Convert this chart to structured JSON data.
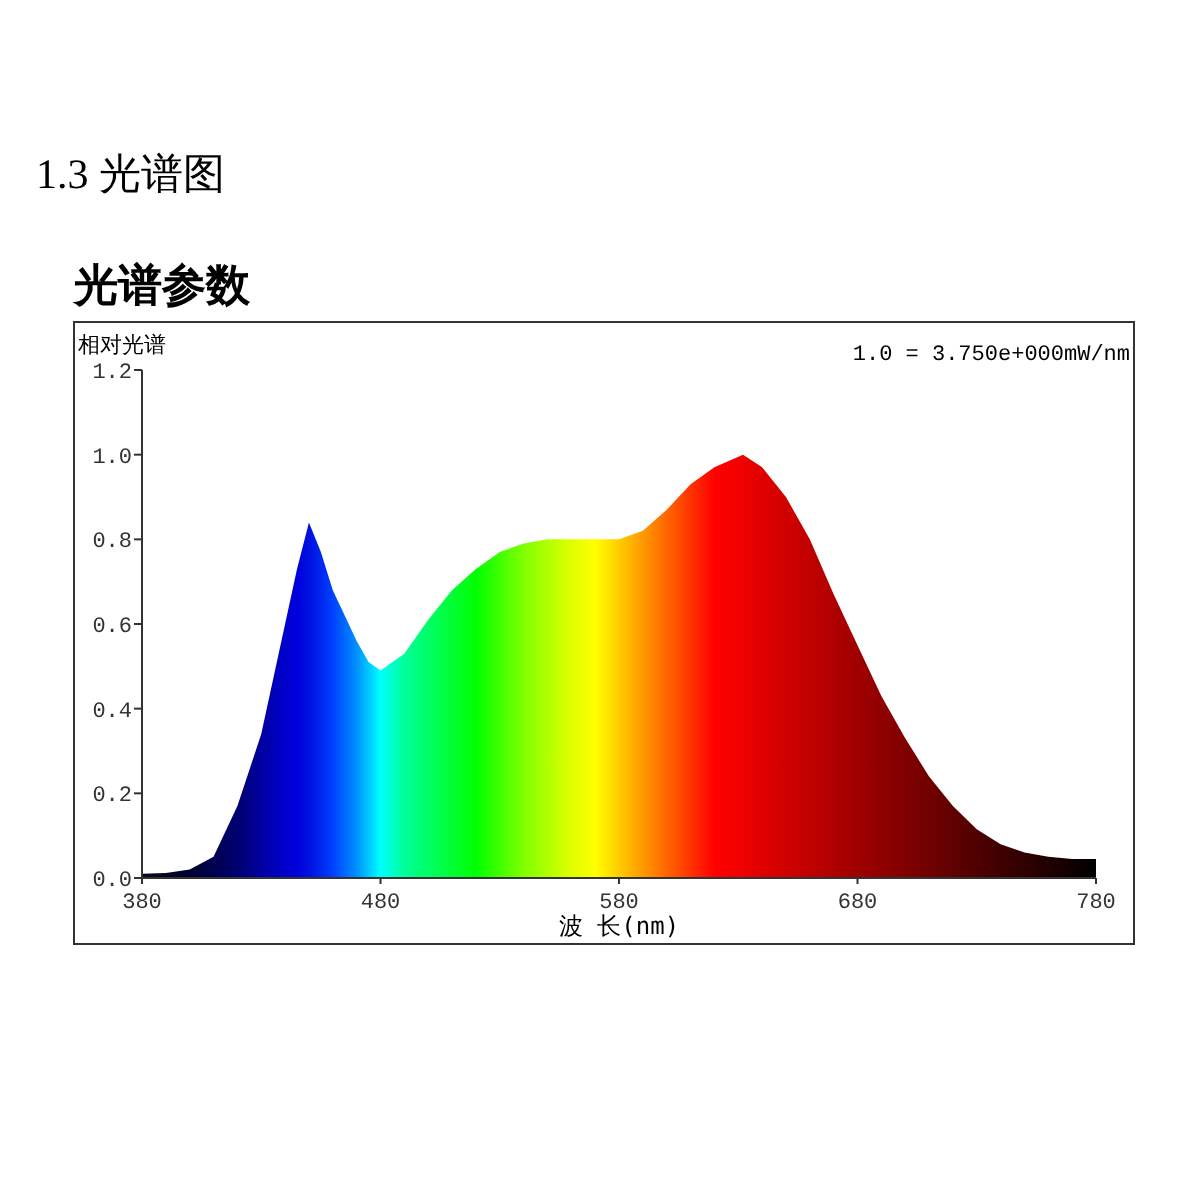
{
  "chart_data": {
    "type": "area",
    "title": "1.3 光谱图",
    "subtitle": "光谱参数",
    "xlabel": "波 长(nm)",
    "ylabel": "相对光谱",
    "annotations": [
      "1.0 = 3.750e+000mW/nm"
    ],
    "x": [
      380,
      390,
      400,
      410,
      420,
      430,
      440,
      445,
      450,
      455,
      460,
      465,
      470,
      475,
      480,
      490,
      500,
      510,
      520,
      530,
      540,
      550,
      560,
      570,
      580,
      590,
      600,
      610,
      620,
      632,
      640,
      650,
      660,
      670,
      680,
      690,
      700,
      710,
      720,
      730,
      740,
      750,
      760,
      770,
      780
    ],
    "series": [
      {
        "values": [
          0.01,
          0.012,
          0.02,
          0.05,
          0.17,
          0.34,
          0.6,
          0.73,
          0.84,
          0.77,
          0.68,
          0.62,
          0.56,
          0.51,
          0.49,
          0.53,
          0.61,
          0.68,
          0.73,
          0.77,
          0.79,
          0.8,
          0.8,
          0.8,
          0.8,
          0.82,
          0.87,
          0.93,
          0.97,
          1.0,
          0.97,
          0.9,
          0.8,
          0.67,
          0.55,
          0.43,
          0.33,
          0.24,
          0.17,
          0.115,
          0.08,
          0.06,
          0.05,
          0.045,
          0.045
        ],
        "colors": [
          "#0a0a1e",
          "#05052a",
          "#000030",
          "#000050",
          "#000070",
          "#0000a0",
          "#0000cc",
          "#0000dd",
          "#0010e0",
          "#0028f0",
          "#0040ff",
          "#0068ff",
          "#0090ff",
          "#00c8ff",
          "#00ffff",
          "#00ff99",
          "#00ff66",
          "#00ff33",
          "#00ff00",
          "#40ff00",
          "#80ff00",
          "#b0ff00",
          "#e0ff00",
          "#ffff00",
          "#ffcc00",
          "#ff9900",
          "#ff6600",
          "#ff3300",
          "#ff0000",
          "#f00000",
          "#e00000",
          "#d00000",
          "#c00000",
          "#b00000",
          "#a00000",
          "#900000",
          "#800000",
          "#700000",
          "#600000",
          "#500000",
          "#400000",
          "#300000",
          "#200000",
          "#100000",
          "#000000"
        ]
      }
    ],
    "xlim": [
      380,
      780
    ],
    "ylim": [
      0,
      1.2
    ],
    "xticks": [
      380,
      480,
      580,
      680,
      780
    ],
    "yticks": [
      {
        "value": 0,
        "label": "0.0"
      },
      0.2,
      0.4,
      0.6,
      0.8,
      {
        "value": 1,
        "label": "1.0"
      },
      1.2
    ],
    "grid": false
  }
}
